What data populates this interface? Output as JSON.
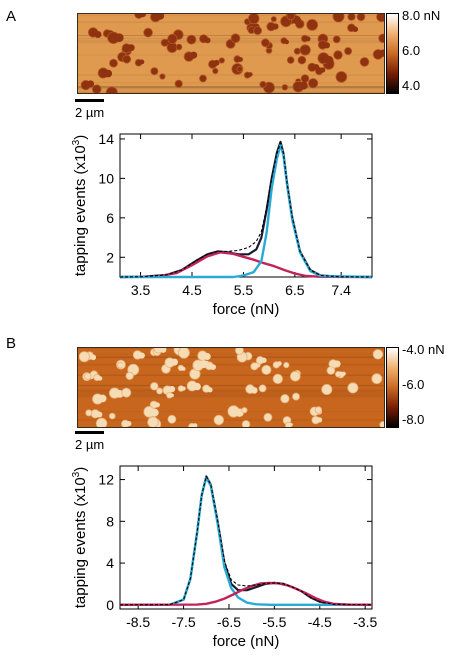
{
  "panels": [
    {
      "label": "A",
      "colorbar": {
        "ticks": [
          "8.0 nN",
          "6.0",
          "4.0"
        ],
        "colors": [
          "#ffffff",
          "#f0b070",
          "#c86a24",
          "#7a1e06",
          "#000000"
        ]
      },
      "image_colors": {
        "background": "#e09a50",
        "island": "#8e3210",
        "island_edge": "#b45a22"
      },
      "scalebar_label": "2 µm"
    },
    {
      "label": "B",
      "colorbar": {
        "ticks": [
          "-4.0 nN",
          "-6.0",
          "-8.0"
        ],
        "colors": [
          "#ffffff",
          "#f0b070",
          "#c86a24",
          "#7a1e06",
          "#000000"
        ]
      },
      "image_colors": {
        "background": "#c8661e",
        "island": "#f6dcb4",
        "island_edge": "#e8b07a"
      },
      "scalebar_label": "2 µm"
    }
  ],
  "chart_data": [
    {
      "type": "line",
      "xlabel": "force (nN)",
      "ylabel": "tapping events (x10",
      "ylabel_exponent": "3",
      "ylabel_close": ")",
      "x_ticks": [
        "3.5",
        "4.5",
        "5.5",
        "6.5",
        "7.4"
      ],
      "x_tick_values": [
        3.5,
        4.5,
        5.5,
        6.5,
        7.4
      ],
      "y_ticks": [
        "2",
        "6",
        "10",
        "14"
      ],
      "y_tick_values": [
        2,
        6,
        10,
        14
      ],
      "xlim": [
        3.1,
        8.0
      ],
      "ylim": [
        0,
        14.5
      ],
      "colors": {
        "data": "#1a1a2e",
        "fit": "#000000",
        "peak1": "#c0245a",
        "peak2": "#29a9d6"
      },
      "series": [
        {
          "role": "data",
          "style": "solid",
          "x": [
            3.1,
            3.5,
            4.0,
            4.3,
            4.6,
            4.8,
            5.0,
            5.2,
            5.4,
            5.6,
            5.75,
            5.85,
            5.95,
            6.05,
            6.15,
            6.22,
            6.28,
            6.35,
            6.45,
            6.6,
            6.8,
            7.0,
            7.4,
            8.0
          ],
          "y": [
            0,
            0.02,
            0.2,
            0.7,
            1.7,
            2.3,
            2.6,
            2.5,
            2.3,
            2.3,
            2.8,
            4.0,
            6.8,
            10.0,
            12.6,
            13.7,
            12.5,
            9.5,
            6.0,
            2.6,
            0.7,
            0.15,
            0.02,
            0
          ]
        },
        {
          "role": "fit",
          "style": "dashed",
          "x": [
            3.1,
            3.5,
            4.0,
            4.3,
            4.6,
            4.8,
            5.0,
            5.2,
            5.4,
            5.6,
            5.75,
            5.85,
            5.95,
            6.05,
            6.15,
            6.22,
            6.28,
            6.35,
            6.45,
            6.6,
            6.8,
            7.0,
            7.4,
            8.0
          ],
          "y": [
            0,
            0.02,
            0.2,
            0.7,
            1.7,
            2.3,
            2.6,
            2.6,
            2.7,
            3.0,
            3.6,
            4.6,
            7.0,
            10.0,
            12.5,
            13.6,
            12.5,
            9.5,
            6.0,
            2.6,
            0.7,
            0.15,
            0.02,
            0
          ]
        },
        {
          "role": "peak1",
          "style": "solid",
          "x": [
            3.1,
            3.8,
            4.2,
            4.5,
            4.8,
            5.05,
            5.3,
            5.5,
            5.7,
            5.9,
            6.1,
            6.3,
            6.5,
            6.7,
            7.0,
            8.0
          ],
          "y": [
            0,
            0.05,
            0.4,
            1.2,
            2.1,
            2.5,
            2.35,
            2.05,
            1.75,
            1.4,
            1.1,
            0.7,
            0.35,
            0.12,
            0.02,
            0
          ]
        },
        {
          "role": "peak2",
          "style": "solid",
          "x": [
            3.1,
            5.3,
            5.5,
            5.7,
            5.85,
            5.95,
            6.05,
            6.15,
            6.22,
            6.28,
            6.35,
            6.45,
            6.6,
            6.8,
            7.0,
            8.0
          ],
          "y": [
            0,
            0,
            0.15,
            0.5,
            1.6,
            4.5,
            9.0,
            12.0,
            13.4,
            12.3,
            9.3,
            5.8,
            2.5,
            0.6,
            0.1,
            0
          ]
        }
      ]
    },
    {
      "type": "line",
      "xlabel": "force (nN)",
      "ylabel": "tapping events (x10",
      "ylabel_exponent": "3",
      "ylabel_close": ")",
      "x_ticks": [
        "-8.5",
        "-7.5",
        "-6.5",
        "-5.5",
        "-4.5",
        "-3.5"
      ],
      "x_tick_values": [
        -8.5,
        -7.5,
        -6.5,
        -5.5,
        -4.5,
        -3.5
      ],
      "y_ticks": [
        "0",
        "4",
        "8",
        "12"
      ],
      "y_tick_values": [
        0,
        4,
        8,
        12
      ],
      "xlim": [
        -8.9,
        -3.35
      ],
      "ylim": [
        -0.4,
        13.3
      ],
      "colors": {
        "data": "#1a1a2e",
        "fit": "#000000",
        "peak1": "#29a9d6",
        "peak2": "#c0245a"
      },
      "series": [
        {
          "role": "data",
          "style": "solid",
          "x": [
            -8.9,
            -7.8,
            -7.5,
            -7.35,
            -7.2,
            -7.1,
            -7.0,
            -6.9,
            -6.75,
            -6.6,
            -6.45,
            -6.3,
            -6.1,
            -5.9,
            -5.7,
            -5.5,
            -5.3,
            -5.1,
            -4.9,
            -4.7,
            -4.5,
            -4.2,
            -3.35
          ],
          "y": [
            0,
            0.02,
            0.5,
            2.5,
            7.0,
            10.5,
            12.3,
            11.5,
            8.0,
            4.0,
            2.0,
            1.4,
            1.4,
            1.7,
            2.0,
            2.1,
            2.0,
            1.7,
            1.3,
            0.7,
            0.3,
            0.05,
            0
          ]
        },
        {
          "role": "fit",
          "style": "dashed",
          "x": [
            -8.9,
            -7.8,
            -7.5,
            -7.35,
            -7.2,
            -7.1,
            -7.0,
            -6.9,
            -6.75,
            -6.6,
            -6.45,
            -6.3,
            -6.1,
            -5.9,
            -5.7,
            -5.5,
            -5.3,
            -5.1,
            -4.9,
            -4.7,
            -4.5,
            -4.2,
            -3.35
          ],
          "y": [
            0,
            0.02,
            0.5,
            2.5,
            7.0,
            10.5,
            12.3,
            11.5,
            8.1,
            4.2,
            2.4,
            1.9,
            1.8,
            1.9,
            2.05,
            2.1,
            2.0,
            1.7,
            1.3,
            0.7,
            0.3,
            0.05,
            0
          ]
        },
        {
          "role": "peak1",
          "style": "solid",
          "x": [
            -8.9,
            -7.8,
            -7.5,
            -7.35,
            -7.2,
            -7.1,
            -7.0,
            -6.9,
            -6.75,
            -6.6,
            -6.45,
            -6.3,
            -6.1,
            -5.9,
            -5.6,
            -3.35
          ],
          "y": [
            0,
            0.02,
            0.5,
            2.5,
            7.0,
            10.5,
            12.2,
            11.4,
            7.8,
            3.6,
            1.6,
            0.7,
            0.2,
            0.05,
            0,
            0
          ]
        },
        {
          "role": "peak2",
          "style": "solid",
          "x": [
            -8.9,
            -7.2,
            -7.0,
            -6.8,
            -6.6,
            -6.4,
            -6.2,
            -6.0,
            -5.8,
            -5.6,
            -5.4,
            -5.2,
            -5.0,
            -4.8,
            -4.6,
            -4.4,
            -4.2,
            -3.9,
            -3.35
          ],
          "y": [
            0,
            0.02,
            0.1,
            0.3,
            0.6,
            1.0,
            1.45,
            1.8,
            2.05,
            2.1,
            2.05,
            1.85,
            1.5,
            1.1,
            0.65,
            0.3,
            0.1,
            0.02,
            0
          ]
        }
      ]
    }
  ]
}
